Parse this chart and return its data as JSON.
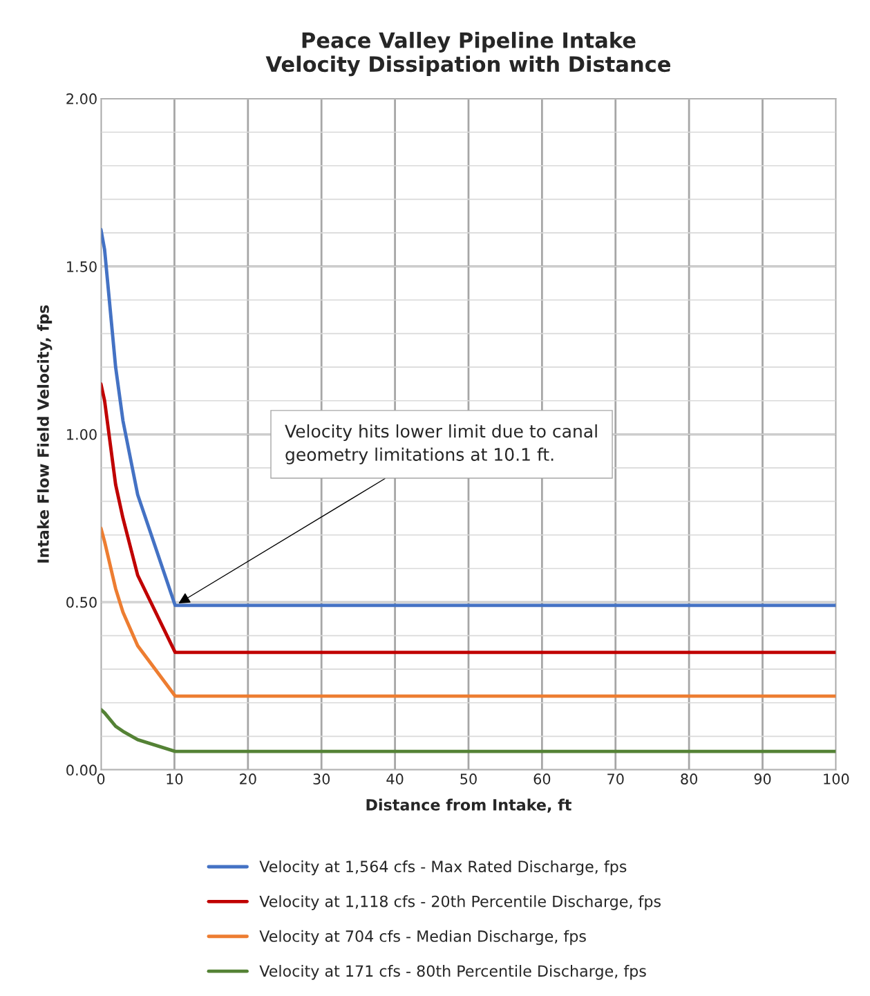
{
  "chart_data": {
    "type": "line",
    "title": "Peace Valley Pipeline Intake\nVelocity Dissipation with Distance",
    "xlabel": "Distance from Intake, ft",
    "ylabel": "Intake Flow Field Velocity, fps",
    "xlim": [
      0,
      100
    ],
    "xticks": [
      0,
      10,
      20,
      30,
      40,
      50,
      60,
      70,
      80,
      90,
      100
    ],
    "ylim": [
      0,
      2
    ],
    "yticks": [
      {
        "value": 0,
        "label": "0.00"
      },
      {
        "value": 0.1,
        "label": null
      },
      {
        "value": 0.2,
        "label": null
      },
      {
        "value": 0.3,
        "label": null
      },
      {
        "value": 0.4,
        "label": null
      },
      {
        "value": 0.5,
        "label": "0.50"
      },
      {
        "value": 0.6,
        "label": null
      },
      {
        "value": 0.7,
        "label": null
      },
      {
        "value": 0.8,
        "label": null
      },
      {
        "value": 0.9,
        "label": null
      },
      {
        "value": 1.0,
        "label": "1.00"
      },
      {
        "value": 1.1,
        "label": null
      },
      {
        "value": 1.2,
        "label": null
      },
      {
        "value": 1.3,
        "label": null
      },
      {
        "value": 1.4,
        "label": null
      },
      {
        "value": 1.5,
        "label": "1.50"
      },
      {
        "value": 1.6,
        "label": null
      },
      {
        "value": 1.7,
        "label": null
      },
      {
        "value": 1.8,
        "label": null
      },
      {
        "value": 1.9,
        "label": null
      },
      {
        "value": 2.0,
        "label": "2.00"
      }
    ],
    "grid": true,
    "legend": "bottom",
    "marker": "none",
    "line_style": "solid",
    "x": [
      0,
      0.5,
      2,
      3,
      5,
      10.1,
      100
    ],
    "series": [
      {
        "name": "Velocity at 1,564 cfs - Max Rated Discharge, fps",
        "color": "#4472c4",
        "values": [
          1.61,
          1.55,
          1.2,
          1.04,
          0.82,
          0.49,
          0.49
        ]
      },
      {
        "name": "Velocity at 1,118 cfs - 20th Percentile Discharge, fps",
        "color": "#c00000",
        "values": [
          1.15,
          1.1,
          0.85,
          0.75,
          0.58,
          0.35,
          0.35
        ]
      },
      {
        "name": "Velocity at 704 cfs - Median Discharge, fps",
        "color": "#ed7d31",
        "values": [
          0.72,
          0.68,
          0.54,
          0.47,
          0.37,
          0.22,
          0.22
        ]
      },
      {
        "name": "Velocity at 171 cfs - 80th Percentile Discharge, fps",
        "color": "#548235",
        "values": [
          0.18,
          0.17,
          0.13,
          0.115,
          0.09,
          0.055,
          0.055
        ]
      }
    ],
    "annotations": [
      {
        "text": "Velocity hits lower limit due to canal\ngeometry limitations at 10.1 ft.",
        "x": 10.1,
        "y": 0.49
      }
    ]
  }
}
